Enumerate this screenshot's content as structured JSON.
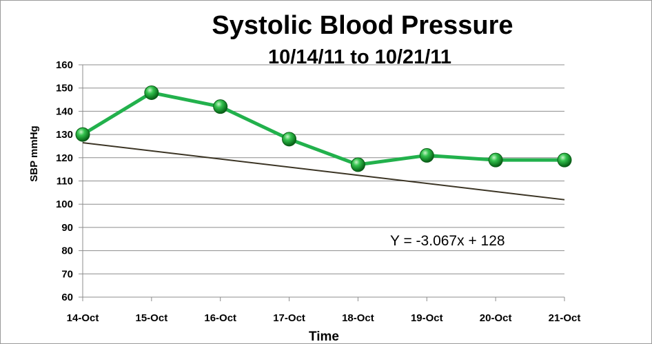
{
  "chart_data": {
    "type": "line",
    "title": "Systolic Blood Pressure",
    "subtitle": "10/14/11 to 10/21/11",
    "xlabel": "Time",
    "ylabel": "SBP mmHg",
    "categories": [
      "14-Oct",
      "15-Oct",
      "16-Oct",
      "17-Oct",
      "18-Oct",
      "19-Oct",
      "20-Oct",
      "21-Oct"
    ],
    "series": [
      {
        "values": [
          130,
          148,
          142,
          128,
          117,
          121,
          119,
          119
        ],
        "color": "#22b14c"
      }
    ],
    "trendline": {
      "equation": "Y = -3.067x + 128",
      "slope": -3.067,
      "intercept": 128,
      "color": "#3b3424"
    },
    "ylim": [
      60,
      160
    ],
    "yticks": [
      60,
      70,
      80,
      90,
      100,
      110,
      120,
      130,
      140,
      150,
      160
    ],
    "grid": true,
    "legend": "none"
  }
}
